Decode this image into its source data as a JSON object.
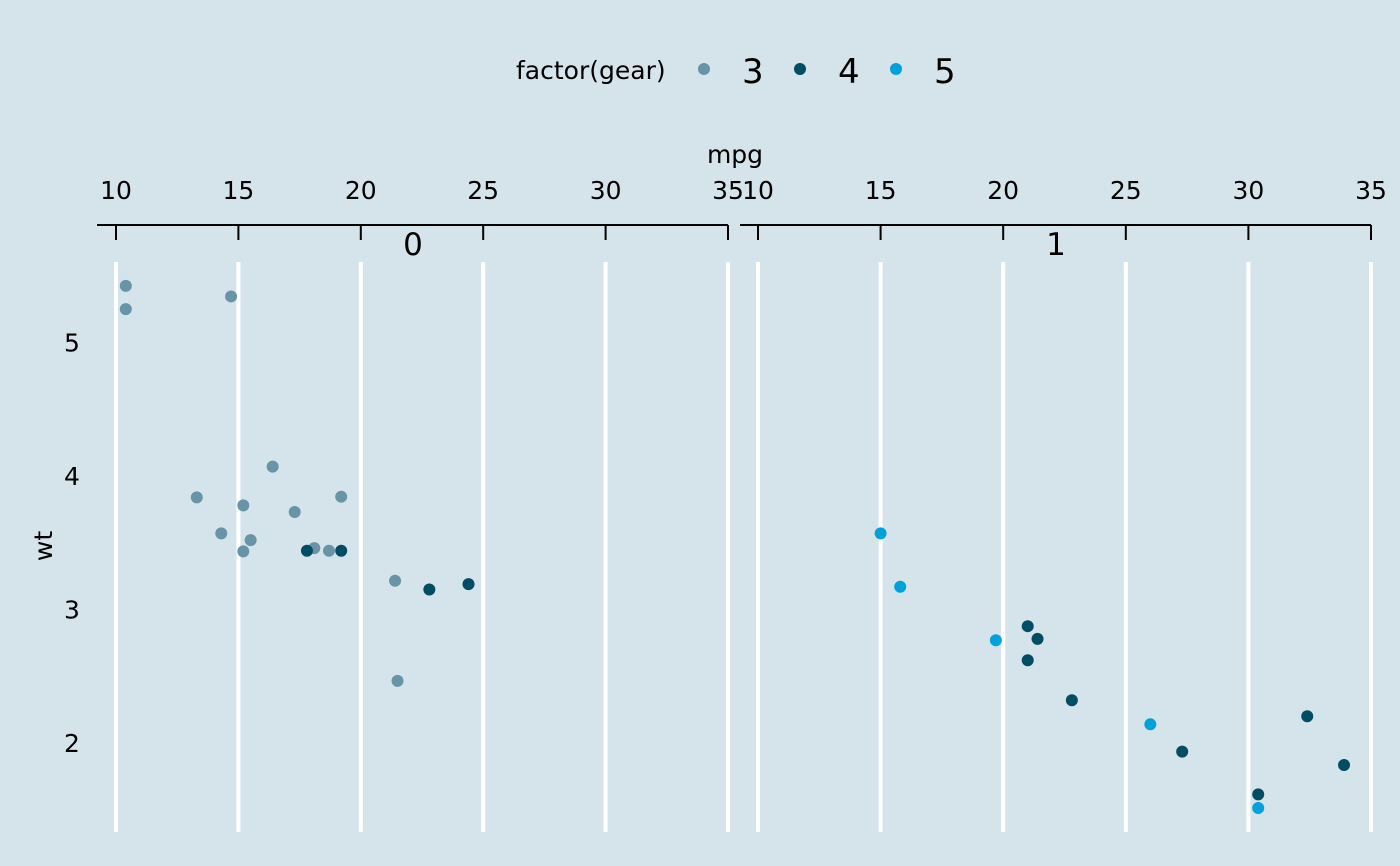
{
  "colors": {
    "background": "#d5e4eb",
    "gear_3": "#6794a7",
    "gear_4": "#014d64",
    "gear_5": "#01a2d9"
  },
  "legend": {
    "title": "factor(gear)",
    "entries": [
      {
        "label": "3",
        "color": "#6794a7"
      },
      {
        "label": "4",
        "color": "#014d64"
      },
      {
        "label": "5",
        "color": "#01a2d9"
      }
    ]
  },
  "chart_data": {
    "type": "scatter",
    "xlabel": "mpg",
    "ylabel": "wt",
    "xlim": [
      10,
      35
    ],
    "ylim": [
      1.5,
      5.6
    ],
    "x_ticks": [
      10,
      15,
      20,
      25,
      30,
      35
    ],
    "y_ticks": [
      2,
      3,
      4,
      5
    ],
    "facets": [
      {
        "label": "0",
        "points": [
          {
            "x": 10.4,
            "y": 5.424,
            "gear": 3
          },
          {
            "x": 10.4,
            "y": 5.25,
            "gear": 3
          },
          {
            "x": 14.7,
            "y": 5.345,
            "gear": 3
          },
          {
            "x": 16.4,
            "y": 4.07,
            "gear": 3
          },
          {
            "x": 13.3,
            "y": 3.84,
            "gear": 3
          },
          {
            "x": 19.2,
            "y": 3.845,
            "gear": 3
          },
          {
            "x": 15.2,
            "y": 3.78,
            "gear": 3
          },
          {
            "x": 17.3,
            "y": 3.73,
            "gear": 3
          },
          {
            "x": 14.3,
            "y": 3.57,
            "gear": 3
          },
          {
            "x": 15.5,
            "y": 3.52,
            "gear": 3
          },
          {
            "x": 15.2,
            "y": 3.435,
            "gear": 3
          },
          {
            "x": 18.1,
            "y": 3.46,
            "gear": 3
          },
          {
            "x": 18.7,
            "y": 3.44,
            "gear": 3
          },
          {
            "x": 17.8,
            "y": 3.44,
            "gear": 4
          },
          {
            "x": 19.2,
            "y": 3.44,
            "gear": 4
          },
          {
            "x": 21.4,
            "y": 3.215,
            "gear": 3
          },
          {
            "x": 22.8,
            "y": 3.15,
            "gear": 4
          },
          {
            "x": 24.4,
            "y": 3.19,
            "gear": 4
          },
          {
            "x": 21.5,
            "y": 2.465,
            "gear": 3
          }
        ]
      },
      {
        "label": "1",
        "points": [
          {
            "x": 15.0,
            "y": 3.57,
            "gear": 5
          },
          {
            "x": 15.8,
            "y": 3.17,
            "gear": 5
          },
          {
            "x": 19.7,
            "y": 2.77,
            "gear": 5
          },
          {
            "x": 21.0,
            "y": 2.875,
            "gear": 4
          },
          {
            "x": 21.4,
            "y": 2.78,
            "gear": 4
          },
          {
            "x": 21.0,
            "y": 2.62,
            "gear": 4
          },
          {
            "x": 22.8,
            "y": 2.32,
            "gear": 4
          },
          {
            "x": 26.0,
            "y": 2.14,
            "gear": 5
          },
          {
            "x": 32.4,
            "y": 2.2,
            "gear": 4
          },
          {
            "x": 27.3,
            "y": 1.935,
            "gear": 4
          },
          {
            "x": 33.9,
            "y": 1.835,
            "gear": 4
          },
          {
            "x": 30.4,
            "y": 1.615,
            "gear": 4
          },
          {
            "x": 30.4,
            "y": 1.513,
            "gear": 5
          }
        ]
      }
    ]
  }
}
